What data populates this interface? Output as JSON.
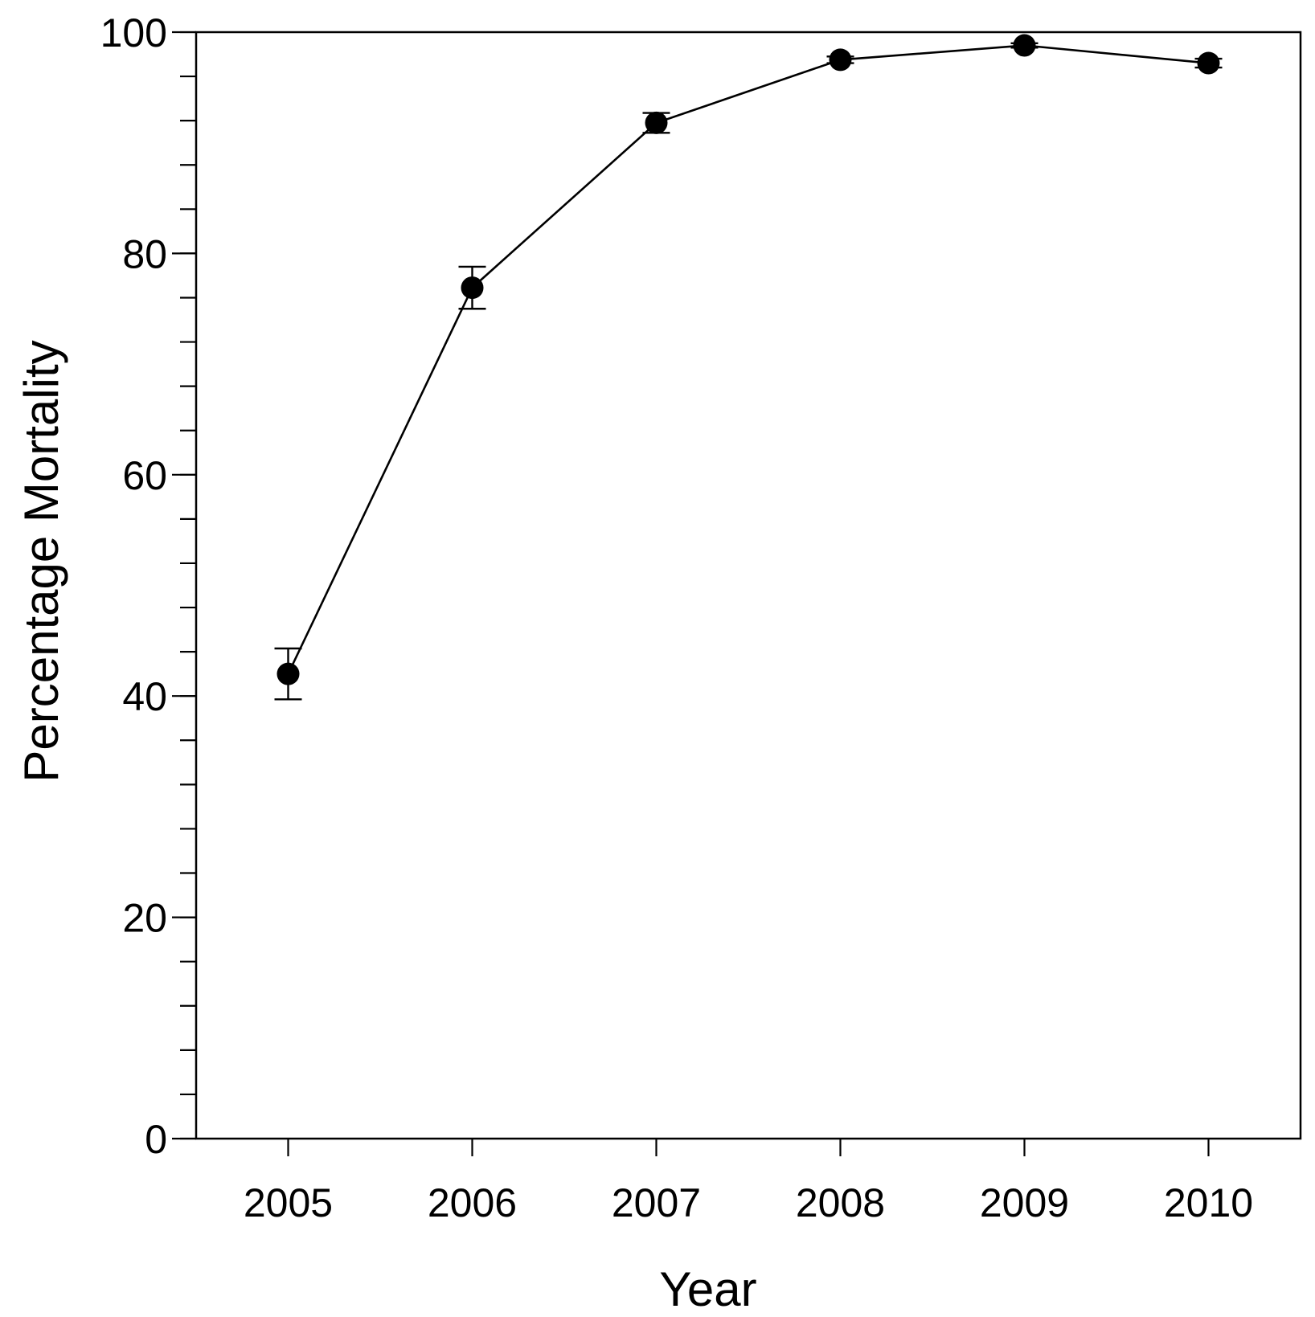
{
  "chart_data": {
    "type": "line",
    "xlabel": "Year",
    "ylabel": "Percentage Mortality",
    "x": [
      2005,
      2006,
      2007,
      2008,
      2009,
      2010
    ],
    "xticks": [
      "2005",
      "2006",
      "2007",
      "2008",
      "2009",
      "2010"
    ],
    "ylim": [
      0,
      100
    ],
    "yticks_major": [
      0,
      20,
      40,
      60,
      80,
      100
    ],
    "yticks_minor_step": 4,
    "grid": false,
    "legend": false,
    "series": [
      {
        "values": [
          42.0,
          76.9,
          91.8,
          97.5,
          98.8,
          97.2
        ],
        "error": [
          2.3,
          1.9,
          0.9,
          0.3,
          0.2,
          0.4
        ]
      }
    ],
    "colors": {
      "line": "#000000",
      "marker": "#000000",
      "background": "#ffffff"
    }
  }
}
